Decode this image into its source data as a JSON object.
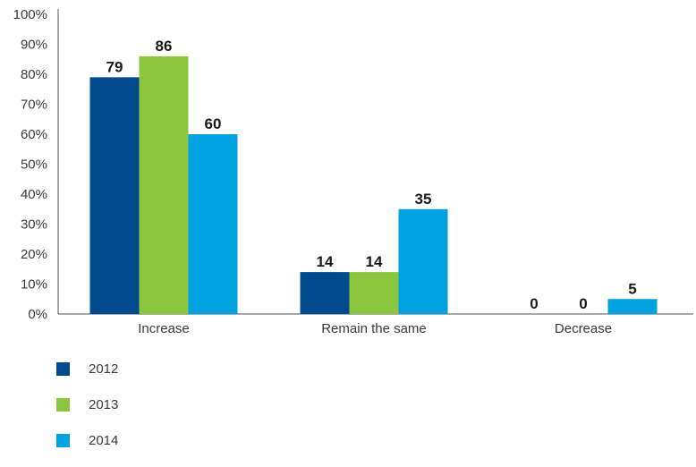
{
  "chart_data": {
    "type": "bar",
    "categories": [
      "Increase",
      "Remain the same",
      "Decrease"
    ],
    "series": [
      {
        "name": "2012",
        "values": [
          79,
          14,
          0
        ],
        "color": "#004b8d"
      },
      {
        "name": "2013",
        "values": [
          86,
          14,
          0
        ],
        "color": "#8cc63f"
      },
      {
        "name": "2014",
        "values": [
          60,
          35,
          5
        ],
        "color": "#00a3e0"
      }
    ],
    "yticks": [
      "0%",
      "10%",
      "20%",
      "30%",
      "40%",
      "50%",
      "60%",
      "70%",
      "80%",
      "90%",
      "100%"
    ],
    "ylim": [
      0,
      100
    ],
    "grid": false,
    "legend": "bottom-left"
  }
}
